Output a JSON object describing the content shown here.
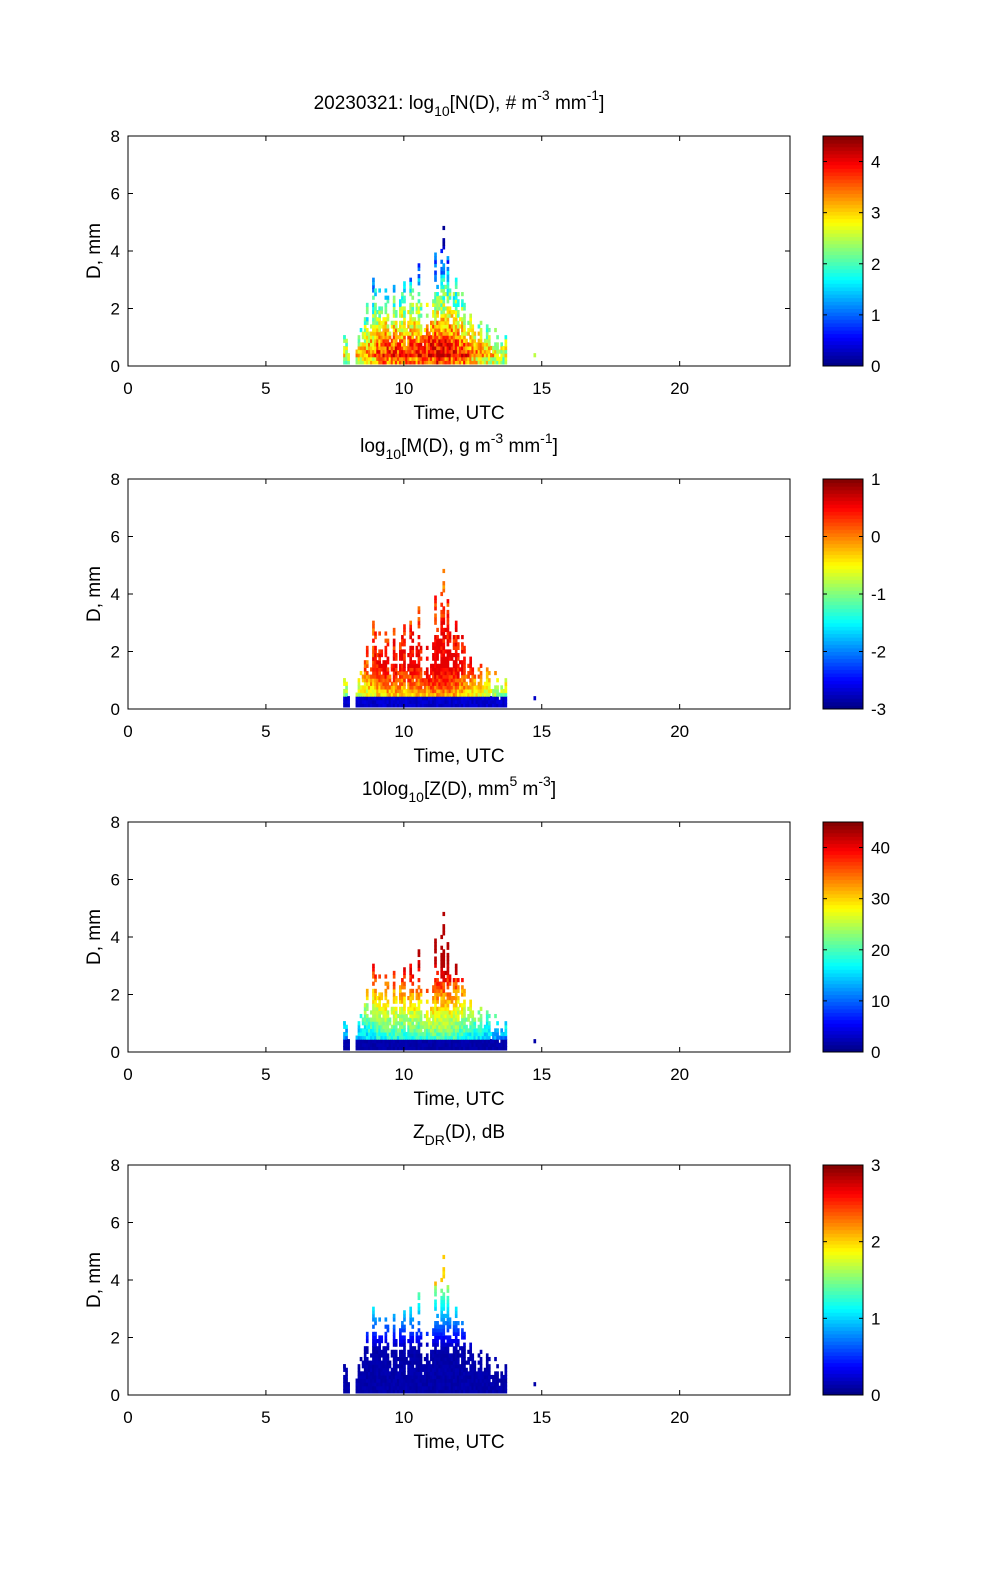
{
  "colormap": [
    "#00008f",
    "#0000ff",
    "#0080ff",
    "#00ffff",
    "#80ff80",
    "#ffff00",
    "#ff8000",
    "#ff0000",
    "#800000"
  ],
  "chart_data": [
    {
      "type": "heatmap",
      "title": {
        "prefix": "20230321: log",
        "sub": "10",
        "rest": "[N(D), # m",
        "sup1": "-3",
        "mid": " mm",
        "sup2": "-1",
        "end": "]"
      },
      "xlabel": "Time, UTC",
      "ylabel": "D, mm",
      "xlim": [
        0,
        24
      ],
      "ylim": [
        0,
        8
      ],
      "xticks": [
        0,
        5,
        10,
        15,
        20
      ],
      "yticks": [
        0,
        2,
        4,
        6,
        8
      ],
      "xtick_labels": [
        "0",
        "5",
        "10",
        "15",
        "20"
      ],
      "ytick_labels": [
        "0",
        "2",
        "4",
        "6",
        "8"
      ],
      "clim": [
        0,
        4.5
      ],
      "cticks": [
        0,
        1,
        2,
        3,
        4
      ],
      "ctick_labels": [
        "0",
        "1",
        "2",
        "3",
        "4"
      ],
      "variable": "N"
    },
    {
      "type": "heatmap",
      "title": {
        "prefix": "log",
        "sub": "10",
        "rest": "[M(D), g m",
        "sup1": "-3",
        "mid": " mm",
        "sup2": "-1",
        "end": "]"
      },
      "xlabel": "Time, UTC",
      "ylabel": "D, mm",
      "xlim": [
        0,
        24
      ],
      "ylim": [
        0,
        8
      ],
      "xticks": [
        0,
        5,
        10,
        15,
        20
      ],
      "yticks": [
        0,
        2,
        4,
        6,
        8
      ],
      "xtick_labels": [
        "0",
        "5",
        "10",
        "15",
        "20"
      ],
      "ytick_labels": [
        "0",
        "2",
        "4",
        "6",
        "8"
      ],
      "clim": [
        -3,
        1
      ],
      "cticks": [
        -3,
        -2,
        -1,
        0,
        1
      ],
      "ctick_labels": [
        "-3",
        "-2",
        "-1",
        "0",
        "1"
      ],
      "variable": "M"
    },
    {
      "type": "heatmap",
      "title": {
        "prefix": "10log",
        "sub": "10",
        "rest": "[Z(D),  mm",
        "sup1": "5",
        "mid": " m",
        "sup2": "-3",
        "end": "]"
      },
      "xlabel": "Time, UTC",
      "ylabel": "D, mm",
      "xlim": [
        0,
        24
      ],
      "ylim": [
        0,
        8
      ],
      "xticks": [
        0,
        5,
        10,
        15,
        20
      ],
      "yticks": [
        0,
        2,
        4,
        6,
        8
      ],
      "xtick_labels": [
        "0",
        "5",
        "10",
        "15",
        "20"
      ],
      "ytick_labels": [
        "0",
        "2",
        "4",
        "6",
        "8"
      ],
      "clim": [
        0,
        45
      ],
      "cticks": [
        0,
        10,
        20,
        30,
        40
      ],
      "ctick_labels": [
        "0",
        "10",
        "20",
        "30",
        "40"
      ],
      "variable": "Z"
    },
    {
      "type": "heatmap",
      "title": {
        "prefix": "Z",
        "sub": "DR",
        "rest": "(D), dB",
        "sup1": "",
        "mid": "",
        "sup2": "",
        "end": ""
      },
      "xlabel": "Time, UTC",
      "ylabel": "D, mm",
      "xlim": [
        0,
        24
      ],
      "ylim": [
        0,
        8
      ],
      "xticks": [
        0,
        5,
        10,
        15,
        20
      ],
      "yticks": [
        0,
        2,
        4,
        6,
        8
      ],
      "xtick_labels": [
        "0",
        "5",
        "10",
        "15",
        "20"
      ],
      "ytick_labels": [
        "0",
        "2",
        "4",
        "6",
        "8"
      ],
      "clim": [
        0,
        3
      ],
      "cticks": [
        0,
        1,
        2,
        3
      ],
      "ctick_labels": [
        "0",
        "1",
        "2",
        "3"
      ],
      "variable": "ZDR"
    }
  ],
  "precip_event": {
    "time_range_utc": [
      7.8,
      13.6
    ],
    "columns": [
      {
        "t": 7.8,
        "dmax": 1.2
      },
      {
        "t": 8.4,
        "dmax": 1.5
      },
      {
        "t": 8.6,
        "dmax": 2.2
      },
      {
        "t": 8.9,
        "dmax": 3.0
      },
      {
        "t": 9.1,
        "dmax": 2.7
      },
      {
        "t": 9.3,
        "dmax": 3.5
      },
      {
        "t": 9.6,
        "dmax": 2.6
      },
      {
        "t": 9.9,
        "dmax": 3.6
      },
      {
        "t": 10.2,
        "dmax": 2.8
      },
      {
        "t": 10.5,
        "dmax": 3.2
      },
      {
        "t": 10.8,
        "dmax": 2.5
      },
      {
        "t": 11.1,
        "dmax": 3.5
      },
      {
        "t": 11.4,
        "dmax": 4.8
      },
      {
        "t": 11.6,
        "dmax": 3.7
      },
      {
        "t": 11.8,
        "dmax": 4.0
      },
      {
        "t": 12.1,
        "dmax": 2.4
      },
      {
        "t": 12.4,
        "dmax": 1.9
      },
      {
        "t": 12.7,
        "dmax": 1.7
      },
      {
        "t": 13.0,
        "dmax": 1.9
      },
      {
        "t": 13.3,
        "dmax": 1.4
      },
      {
        "t": 13.6,
        "dmax": 1.2
      },
      {
        "t": 14.7,
        "dmax": 0.5
      }
    ]
  }
}
